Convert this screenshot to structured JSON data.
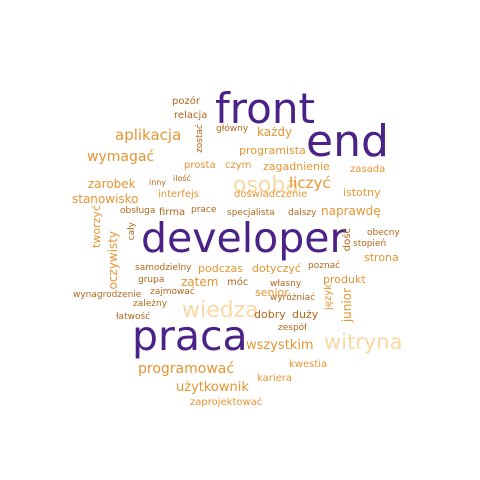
{
  "palette": {
    "purple": "#4b2285",
    "orange": "#e69533",
    "peach": "#f8d9a4",
    "brown": "#b3661a"
  },
  "words": [
    {
      "text": "front",
      "color": "purple"
    },
    {
      "text": "end",
      "color": "purple"
    },
    {
      "text": "developer",
      "color": "purple"
    },
    {
      "text": "praca",
      "color": "purple"
    },
    {
      "text": "osoba",
      "color": "peach"
    },
    {
      "text": "wiedza",
      "color": "peach"
    },
    {
      "text": "witryna",
      "color": "peach"
    },
    {
      "text": "aplikacja",
      "color": "orange"
    },
    {
      "text": "wymagać",
      "color": "orange"
    },
    {
      "text": "liczyć",
      "color": "orange"
    },
    {
      "text": "programować",
      "color": "orange"
    },
    {
      "text": "wszystkim",
      "color": "orange"
    },
    {
      "text": "użytkownik",
      "color": "orange"
    },
    {
      "text": "każdy",
      "color": "orange"
    },
    {
      "text": "programista",
      "color": "orange"
    },
    {
      "text": "zagadnienie",
      "color": "orange"
    },
    {
      "text": "zarobek",
      "color": "orange"
    },
    {
      "text": "stanowisko",
      "color": "orange"
    },
    {
      "text": "istotny",
      "color": "orange"
    },
    {
      "text": "naprawdę",
      "color": "orange"
    },
    {
      "text": "strona",
      "color": "orange"
    },
    {
      "text": "produkt",
      "color": "orange"
    },
    {
      "text": "senior",
      "color": "orange"
    },
    {
      "text": "zatem",
      "color": "orange"
    },
    {
      "text": "junior",
      "color": "orange"
    },
    {
      "text": "podczas",
      "color": "orange"
    },
    {
      "text": "dotyczyć",
      "color": "orange"
    },
    {
      "text": "prosta",
      "color": "orange"
    },
    {
      "text": "czym",
      "color": "orange"
    },
    {
      "text": "interfejs",
      "color": "orange"
    },
    {
      "text": "doświadczenie",
      "color": "orange"
    },
    {
      "text": "zasada",
      "color": "orange"
    },
    {
      "text": "kwestia",
      "color": "orange"
    },
    {
      "text": "kariera",
      "color": "orange"
    },
    {
      "text": "zaprojektować",
      "color": "orange"
    },
    {
      "text": "dobry",
      "color": "brown"
    },
    {
      "text": "duży",
      "color": "brown"
    },
    {
      "text": "pozór",
      "color": "brown"
    },
    {
      "text": "relacja",
      "color": "brown"
    },
    {
      "text": "zostać",
      "color": "brown"
    },
    {
      "text": "główny",
      "color": "brown"
    },
    {
      "text": "inny",
      "color": "brown"
    },
    {
      "text": "ilość",
      "color": "brown"
    },
    {
      "text": "obsługa",
      "color": "brown"
    },
    {
      "text": "firma",
      "color": "brown"
    },
    {
      "text": "prace",
      "color": "brown"
    },
    {
      "text": "specjalista",
      "color": "brown"
    },
    {
      "text": "dalszy",
      "color": "brown"
    },
    {
      "text": "tworzyć",
      "color": "orange"
    },
    {
      "text": "cały",
      "color": "brown"
    },
    {
      "text": "oczywisty",
      "color": "orange"
    },
    {
      "text": "dość",
      "color": "brown"
    },
    {
      "text": "obecny",
      "color": "brown"
    },
    {
      "text": "stopień",
      "color": "brown"
    },
    {
      "text": "samodzielny",
      "color": "brown"
    },
    {
      "text": "grupa",
      "color": "brown"
    },
    {
      "text": "móc",
      "color": "brown"
    },
    {
      "text": "poznać",
      "color": "brown"
    },
    {
      "text": "wynagrodzenie",
      "color": "brown"
    },
    {
      "text": "zajmować",
      "color": "brown"
    },
    {
      "text": "własny",
      "color": "brown"
    },
    {
      "text": "język",
      "color": "orange"
    },
    {
      "text": "zależny",
      "color": "brown"
    },
    {
      "text": "wyróżniać",
      "color": "brown"
    },
    {
      "text": "łatwość",
      "color": "brown"
    },
    {
      "text": "zespół",
      "color": "brown"
    }
  ]
}
